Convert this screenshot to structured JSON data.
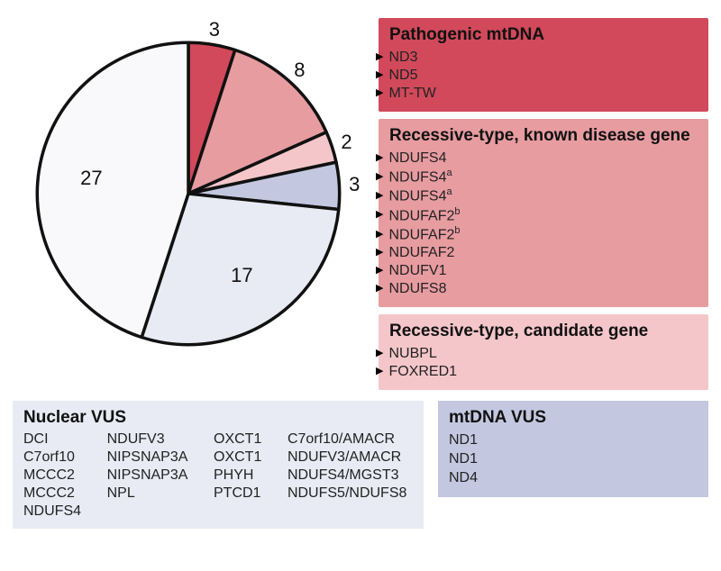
{
  "pie": {
    "values": [
      3,
      8,
      2,
      3,
      17,
      27
    ],
    "colors": [
      "#d1495b",
      "#e79ca0",
      "#f4c6c9",
      "#c3c8e0",
      "#e8ebf4",
      "#f9f9fb"
    ],
    "stroke": "#111111",
    "stroke_width": 1.8,
    "start_angle_deg": -90,
    "label_radius_factor": 1.1,
    "label_fontsize": 22
  },
  "categories": {
    "pathogenic_mtdna": {
      "title": "Pathogenic mtDNA",
      "bg": "#d1495b",
      "items": [
        "ND3",
        "ND5",
        "MT-TW"
      ]
    },
    "recessive_known": {
      "title": "Recessive-type, known disease gene",
      "bg": "#e79ca0",
      "items": [
        {
          "label": "NDUFS4",
          "sup": ""
        },
        {
          "label": "NDUFS4",
          "sup": "a"
        },
        {
          "label": "NDUFS4",
          "sup": "a"
        },
        {
          "label": "NDUFAF2",
          "sup": "b"
        },
        {
          "label": "NDUFAF2",
          "sup": "b"
        },
        {
          "label": "NDUFAF2",
          "sup": ""
        },
        {
          "label": "NDUFV1",
          "sup": ""
        },
        {
          "label": "NDUFS8",
          "sup": ""
        }
      ]
    },
    "recessive_candidate": {
      "title": "Recessive-type, candidate gene",
      "bg": "#f4c6c9",
      "items": [
        "NUBPL",
        "FOXRED1"
      ]
    },
    "mtdna_vus": {
      "title": "mtDNA VUS",
      "bg": "#c3c8e0",
      "items": [
        "ND1",
        "ND1",
        "ND4"
      ]
    },
    "nuclear_vus": {
      "title": "Nuclear VUS",
      "bg": "#e8ebf4",
      "columns": [
        [
          "DCI",
          "C7orf10",
          "MCCC2",
          "MCCC2",
          "NDUFS4"
        ],
        [
          "NDUFV3",
          "NIPSNAP3A",
          "NIPSNAP3A",
          "NPL"
        ],
        [
          "OXCT1",
          "OXCT1",
          "PHYH",
          "PTCD1"
        ],
        [
          "C7orf10/AMACR",
          "NDUFV3/AMACR",
          "NDUFS4/MGST3",
          "NDUFS5/NDUFS8"
        ]
      ]
    }
  }
}
